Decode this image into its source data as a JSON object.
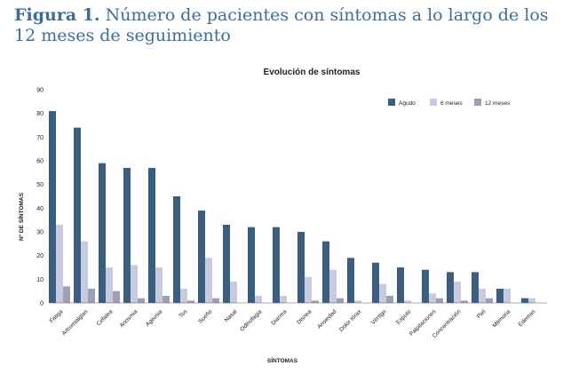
{
  "figure": {
    "label": "Figura 1.",
    "caption": "Número de pacientes con síntomas a lo largo de los 12 meses de seguimiento"
  },
  "chart_data": {
    "type": "bar",
    "title": "Evolución de síntomas",
    "xlabel": "SÍNTOMAS",
    "ylabel": "Nº DE SÍNTOMAS",
    "ylim": [
      0,
      90
    ],
    "yticks": [
      0,
      10,
      20,
      30,
      40,
      50,
      60,
      70,
      80,
      90
    ],
    "grid": false,
    "legend_position": "top-right",
    "categories": [
      "Fatiga",
      "Artromialgias",
      "Cefalea",
      "Anosmia",
      "Ageusia",
      "Tos",
      "Sueño",
      "Nasal",
      "Odinofagia",
      "Diarrea",
      "Disnea",
      "Ansiedad",
      "Dolor tórax",
      "Vértigo",
      "Esputo",
      "Palpitaciones",
      "Concentración",
      "Piel",
      "Memoria",
      "Edemas"
    ],
    "series": [
      {
        "name": "Agudo",
        "color": "#3b5f80",
        "values": [
          81,
          74,
          59,
          57,
          57,
          45,
          39,
          33,
          32,
          32,
          30,
          26,
          19,
          17,
          15,
          14,
          13,
          13,
          6,
          2
        ]
      },
      {
        "name": "6 meses",
        "color": "#c8cbe0",
        "values": [
          33,
          26,
          15,
          16,
          15,
          6,
          19,
          9,
          3,
          3,
          11,
          14,
          1,
          8,
          1,
          4,
          9,
          6,
          6,
          2
        ]
      },
      {
        "name": "12 meses",
        "color": "#9ca2b6",
        "values": [
          7,
          6,
          5,
          2,
          3,
          1,
          2,
          0,
          0,
          0,
          1,
          2,
          0,
          3,
          0,
          2,
          1,
          2,
          0,
          0
        ]
      }
    ]
  }
}
